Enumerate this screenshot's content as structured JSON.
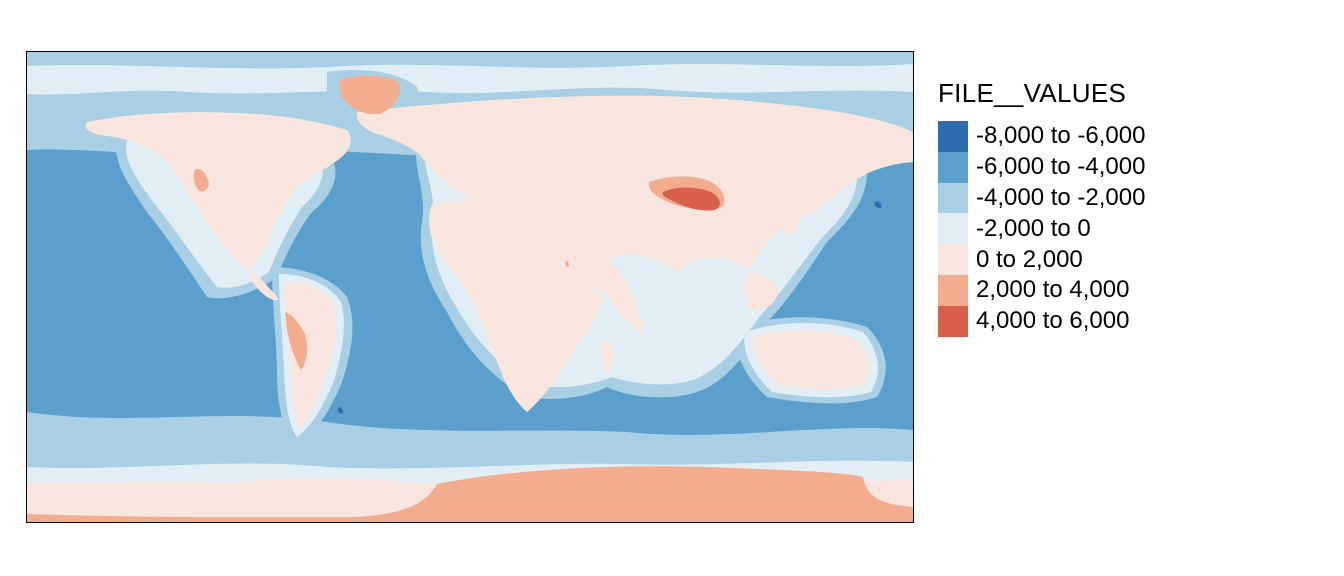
{
  "legend": {
    "title": "FILE__VALUES",
    "items": [
      {
        "label": "-8,000 to -6,000",
        "color": "#2c6db1"
      },
      {
        "label": "-6,000 to -4,000",
        "color": "#5b9fcd"
      },
      {
        "label": "-4,000 to -2,000",
        "color": "#a9cfe5"
      },
      {
        "label": "-2,000 to 0",
        "color": "#e2eef5"
      },
      {
        "label": "0 to 2,000",
        "color": "#f8e6de"
      },
      {
        "label": "2,000 to 4,000",
        "color": "#f3ad8e"
      },
      {
        "label": "4,000 to 6,000",
        "color": "#d75f4c"
      }
    ]
  }
}
